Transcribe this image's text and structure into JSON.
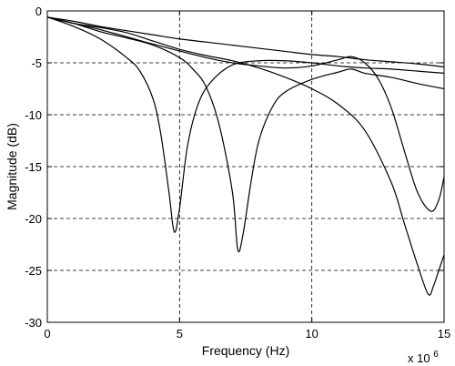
{
  "chart_data": {
    "type": "line",
    "title": "",
    "xlabel": "Frequency (Hz)",
    "ylabel": "Magnitude (dB)",
    "x_multiplier_label": "x 10",
    "x_multiplier_exponent": "6",
    "xlim": [
      0,
      15
    ],
    "ylim": [
      -30,
      0
    ],
    "x_unit_scale": 1000000,
    "xticks": [
      0,
      5,
      10,
      15
    ],
    "yticks": [
      0,
      -5,
      -10,
      -15,
      -20,
      -25,
      -30
    ],
    "xtick_labels": [
      "0",
      "5",
      "10",
      "15"
    ],
    "ytick_labels": [
      "0",
      "-5",
      "-10",
      "-15",
      "-20",
      "-25",
      "-30"
    ],
    "grid": true,
    "legend": "none",
    "line_color": "#000000",
    "series": [
      {
        "x": [
          0,
          1,
          2,
          3,
          4,
          5,
          6,
          7,
          8,
          9,
          10,
          11,
          12,
          13,
          14,
          15
        ],
        "y": [
          -0.6,
          -1.0,
          -1.5,
          -1.9,
          -2.3,
          -2.7,
          -3.0,
          -3.3,
          -3.6,
          -3.9,
          -4.2,
          -4.4,
          -4.7,
          -4.9,
          -5.1,
          -5.4
        ]
      },
      {
        "x": [
          0,
          1,
          2,
          3,
          3.5,
          4,
          4.3,
          4.6,
          4.8,
          5,
          5.3,
          5.7,
          6.2,
          7,
          8,
          9,
          10,
          11,
          12,
          13,
          14,
          15
        ],
        "y": [
          -0.6,
          -1.5,
          -2.7,
          -4.5,
          -5.8,
          -8.5,
          -12,
          -17.5,
          -21.3,
          -19,
          -13,
          -9,
          -6.8,
          -5.2,
          -4.8,
          -4.8,
          -5.0,
          -5.3,
          -5.5,
          -5.6,
          -5.8,
          -6.0
        ]
      },
      {
        "x": [
          0,
          1,
          2,
          3,
          4,
          5,
          5.5,
          6,
          6.5,
          7,
          7.2,
          7.4,
          7.7,
          8,
          8.5,
          9,
          10,
          11,
          11.5,
          12,
          13,
          14,
          15
        ],
        "y": [
          -0.6,
          -1.2,
          -2.0,
          -2.6,
          -3.3,
          -4.5,
          -5.6,
          -7.3,
          -11,
          -17.5,
          -23,
          -21.5,
          -16.5,
          -12.5,
          -9.3,
          -7.8,
          -6.6,
          -5.9,
          -5.6,
          -6.0,
          -6.4,
          -7.0,
          -7.5
        ]
      },
      {
        "x": [
          0,
          1,
          2,
          3,
          4,
          5,
          6,
          7,
          8,
          9,
          10,
          11,
          12,
          13,
          13.5,
          14,
          14.4,
          14.6,
          14.8,
          15
        ],
        "y": [
          -0.6,
          -1.2,
          -1.6,
          -2.1,
          -2.9,
          -3.7,
          -4.3,
          -4.8,
          -5.5,
          -6.4,
          -7.5,
          -9.0,
          -11.5,
          -16.5,
          -20.5,
          -24.5,
          -27.3,
          -26.5,
          -25,
          -23.5
        ]
      },
      {
        "x": [
          0,
          2,
          4,
          6,
          7,
          8,
          9,
          10,
          11,
          11.5,
          12,
          12.5,
          13,
          13.5,
          14,
          14.5,
          14.8,
          15
        ],
        "y": [
          -0.6,
          -1.8,
          -3.2,
          -4.5,
          -5.0,
          -5.3,
          -5.5,
          -5.3,
          -4.7,
          -4.4,
          -5.0,
          -6.5,
          -9.3,
          -13.5,
          -17.5,
          -19.3,
          -18.2,
          -16
        ]
      }
    ]
  }
}
